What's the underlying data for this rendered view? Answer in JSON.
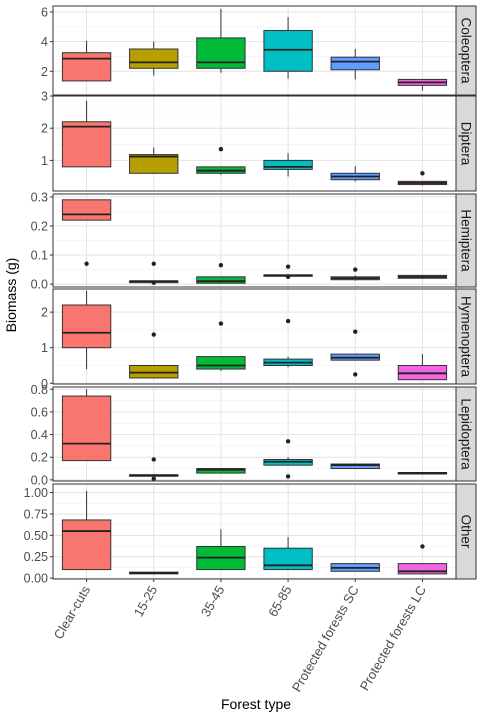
{
  "chart_data": {
    "type": "boxplot",
    "xlabel": "Forest type",
    "ylabel": "Biomass (g)",
    "categories": [
      "Clear-cuts",
      "15-25",
      "35-45",
      "65-85",
      "Protected forests SC",
      "Protected forests LC"
    ],
    "colors": [
      "#F8766D",
      "#B79F00",
      "#00BA38",
      "#00BFC4",
      "#619CFF",
      "#F564E3"
    ],
    "grid": true,
    "facets": [
      {
        "name": "Coleoptera",
        "ylim": [
          0.4,
          6.4
        ],
        "ticks": [
          2,
          4,
          6
        ],
        "tick_labels": [
          "2",
          "4",
          "6"
        ],
        "boxes": [
          {
            "min": 1.35,
            "q1": 1.35,
            "median": 2.85,
            "q3": 3.25,
            "max": 4.05,
            "outliers": []
          },
          {
            "min": 1.7,
            "q1": 2.2,
            "median": 2.6,
            "q3": 3.5,
            "max": 4.0,
            "outliers": []
          },
          {
            "min": 1.9,
            "q1": 2.2,
            "median": 2.6,
            "q3": 4.25,
            "max": 6.2,
            "outliers": []
          },
          {
            "min": 1.5,
            "q1": 2.0,
            "median": 3.45,
            "q3": 4.75,
            "max": 5.65,
            "outliers": []
          },
          {
            "min": 1.45,
            "q1": 2.1,
            "median": 2.65,
            "q3": 2.95,
            "max": 3.5,
            "outliers": []
          },
          {
            "min": 0.7,
            "q1": 1.05,
            "median": 1.25,
            "q3": 1.45,
            "max": 1.45,
            "outliers": []
          }
        ]
      },
      {
        "name": "Diptera",
        "ylim": [
          0.05,
          3.0
        ],
        "ticks": [
          1,
          2,
          3
        ],
        "tick_labels": [
          "1",
          "2",
          "3"
        ],
        "boxes": [
          {
            "min": 0.8,
            "q1": 0.8,
            "median": 2.05,
            "q3": 2.2,
            "max": 2.85,
            "outliers": []
          },
          {
            "min": 0.6,
            "q1": 0.6,
            "median": 1.12,
            "q3": 1.18,
            "max": 1.4,
            "outliers": []
          },
          {
            "min": 0.55,
            "q1": 0.6,
            "median": 0.68,
            "q3": 0.8,
            "max": 0.8,
            "outliers": [
              1.35
            ]
          },
          {
            "min": 0.5,
            "q1": 0.72,
            "median": 0.8,
            "q3": 1.0,
            "max": 1.22,
            "outliers": []
          },
          {
            "min": 0.35,
            "q1": 0.4,
            "median": 0.5,
            "q3": 0.6,
            "max": 0.82,
            "outliers": []
          },
          {
            "min": 0.22,
            "q1": 0.25,
            "median": 0.3,
            "q3": 0.35,
            "max": 0.35,
            "outliers": [
              0.6
            ]
          }
        ]
      },
      {
        "name": "Hemiptera",
        "ylim": [
          -0.01,
          0.31
        ],
        "ticks": [
          0.0,
          0.1,
          0.2,
          0.3
        ],
        "tick_labels": [
          "0.0",
          "0.1",
          "0.2",
          "0.3"
        ],
        "boxes": [
          {
            "min": 0.22,
            "q1": 0.22,
            "median": 0.24,
            "q3": 0.29,
            "max": 0.29,
            "outliers": [
              0.07
            ]
          },
          {
            "min": 0.01,
            "q1": 0.01,
            "median": 0.01,
            "q3": 0.01,
            "max": 0.01,
            "outliers": [
              0.07,
              0.005
            ]
          },
          {
            "min": 0.003,
            "q1": 0.003,
            "median": 0.01,
            "q3": 0.025,
            "max": 0.025,
            "outliers": [
              0.065
            ]
          },
          {
            "min": 0.028,
            "q1": 0.028,
            "median": 0.03,
            "q3": 0.032,
            "max": 0.032,
            "outliers": [
              0.06,
              0.025
            ]
          },
          {
            "min": 0.012,
            "q1": 0.015,
            "median": 0.02,
            "q3": 0.025,
            "max": 0.03,
            "outliers": [
              0.05
            ]
          },
          {
            "min": 0.018,
            "q1": 0.02,
            "median": 0.025,
            "q3": 0.03,
            "max": 0.03,
            "outliers": []
          }
        ]
      },
      {
        "name": "Hymenoptera",
        "ylim": [
          -0.02,
          2.65
        ],
        "ticks": [
          0,
          1,
          2
        ],
        "tick_labels": [
          "0",
          "1",
          "2"
        ],
        "boxes": [
          {
            "min": 0.4,
            "q1": 1.0,
            "median": 1.42,
            "q3": 2.2,
            "max": 2.6,
            "outliers": []
          },
          {
            "min": 0.15,
            "q1": 0.15,
            "median": 0.3,
            "q3": 0.5,
            "max": 0.5,
            "outliers": [
              1.37
            ]
          },
          {
            "min": 0.35,
            "q1": 0.4,
            "median": 0.5,
            "q3": 0.75,
            "max": 0.75,
            "outliers": [
              1.68
            ]
          },
          {
            "min": 0.45,
            "q1": 0.5,
            "median": 0.58,
            "q3": 0.68,
            "max": 0.75,
            "outliers": [
              1.75
            ]
          },
          {
            "min": 0.65,
            "q1": 0.65,
            "median": 0.72,
            "q3": 0.82,
            "max": 0.82,
            "outliers": [
              1.45,
              0.25
            ]
          },
          {
            "min": 0.1,
            "q1": 0.1,
            "median": 0.28,
            "q3": 0.5,
            "max": 0.82,
            "outliers": []
          }
        ]
      },
      {
        "name": "Lepidoptera",
        "ylim": [
          -0.01,
          0.82
        ],
        "ticks": [
          0.0,
          0.2,
          0.4,
          0.6,
          0.8
        ],
        "tick_labels": [
          "0.0",
          "0.2",
          "0.4",
          "0.6",
          "0.8"
        ],
        "boxes": [
          {
            "min": 0.17,
            "q1": 0.17,
            "median": 0.32,
            "q3": 0.74,
            "max": 0.8,
            "outliers": []
          },
          {
            "min": 0.035,
            "q1": 0.035,
            "median": 0.04,
            "q3": 0.045,
            "max": 0.045,
            "outliers": [
              0.18,
              0.01
            ]
          },
          {
            "min": 0.06,
            "q1": 0.06,
            "median": 0.09,
            "q3": 0.1,
            "max": 0.1,
            "outliers": []
          },
          {
            "min": 0.13,
            "q1": 0.13,
            "median": 0.16,
            "q3": 0.18,
            "max": 0.2,
            "outliers": [
              0.34,
              0.03
            ]
          },
          {
            "min": 0.1,
            "q1": 0.1,
            "median": 0.13,
            "q3": 0.14,
            "max": 0.14,
            "outliers": []
          },
          {
            "min": 0.055,
            "q1": 0.055,
            "median": 0.06,
            "q3": 0.065,
            "max": 0.065,
            "outliers": []
          }
        ]
      },
      {
        "name": "Other",
        "ylim": [
          -0.01,
          1.1
        ],
        "ticks": [
          0.0,
          0.25,
          0.5,
          0.75,
          1.0
        ],
        "tick_labels": [
          "0.00",
          "0.25",
          "0.50",
          "0.75",
          "1.00"
        ],
        "boxes": [
          {
            "min": 0.1,
            "q1": 0.1,
            "median": 0.55,
            "q3": 0.68,
            "max": 1.02,
            "outliers": []
          },
          {
            "min": 0.05,
            "q1": 0.05,
            "median": 0.06,
            "q3": 0.07,
            "max": 0.07,
            "outliers": []
          },
          {
            "min": 0.1,
            "q1": 0.1,
            "median": 0.24,
            "q3": 0.37,
            "max": 0.57,
            "outliers": []
          },
          {
            "min": 0.1,
            "q1": 0.1,
            "median": 0.15,
            "q3": 0.35,
            "max": 0.48,
            "outliers": []
          },
          {
            "min": 0.08,
            "q1": 0.08,
            "median": 0.12,
            "q3": 0.17,
            "max": 0.17,
            "outliers": []
          },
          {
            "min": 0.05,
            "q1": 0.05,
            "median": 0.08,
            "q3": 0.17,
            "max": 0.17,
            "outliers": [
              0.37
            ]
          }
        ]
      }
    ]
  }
}
